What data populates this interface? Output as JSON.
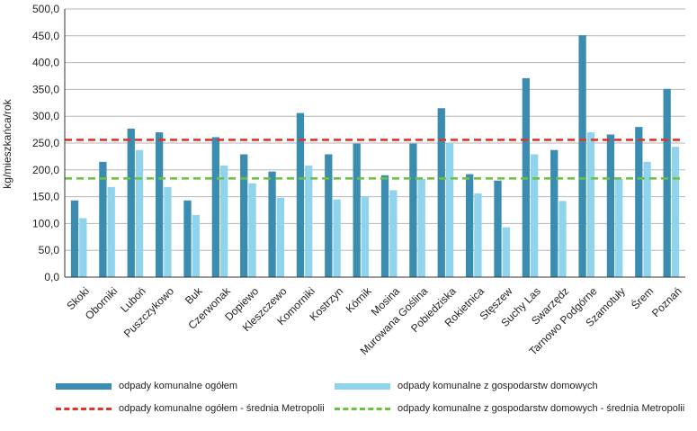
{
  "chart_data": {
    "type": "bar",
    "ylabel": "kg/mieszkańca/rok",
    "ylim": [
      0,
      500
    ],
    "yticks": [
      "0,0",
      "50,0",
      "100,0",
      "150,0",
      "200,0",
      "250,0",
      "300,0",
      "350,0",
      "400,0",
      "450,0",
      "500,0"
    ],
    "categories": [
      "Skoki",
      "Oborniki",
      "Luboń",
      "Puszczykowo",
      "Buk",
      "Czerwonak",
      "Dopiewo",
      "Kleszczewo",
      "Komorniki",
      "Kostrzyn",
      "Kórnik",
      "Mosina",
      "Murowana Goślina",
      "Pobiedziska",
      "Rokietnica",
      "Stęszew",
      "Suchy Las",
      "Swarzędz",
      "Tarnowo Podgórne",
      "Szamotuły",
      "Śrem",
      "Poznań"
    ],
    "series": [
      {
        "name": "odpady komunalne ogółem",
        "color": "#3a8db0",
        "values": [
          143,
          215,
          277,
          270,
          143,
          261,
          229,
          197,
          306,
          229,
          249,
          190,
          249,
          315,
          192,
          180,
          371,
          237,
          451,
          266,
          280,
          351
        ]
      },
      {
        "name": "odpady komunalne z gospodarstw domowych",
        "color": "#8fd3ec",
        "values": [
          110,
          168,
          237,
          168,
          116,
          208,
          175,
          148,
          208,
          145,
          150,
          162,
          183,
          250,
          156,
          93,
          229,
          142,
          270,
          183,
          215,
          243
        ]
      }
    ],
    "reference_lines": [
      {
        "name": "odpady komunalne ogółem - średnia Metropolii",
        "value": 256,
        "color": "#e0352b"
      },
      {
        "name": "odpady komunalne z gospodarstw domowych - średnia Metropolii",
        "value": 184,
        "color": "#6cc23f"
      }
    ],
    "grid": true,
    "legend_position": "bottom"
  }
}
